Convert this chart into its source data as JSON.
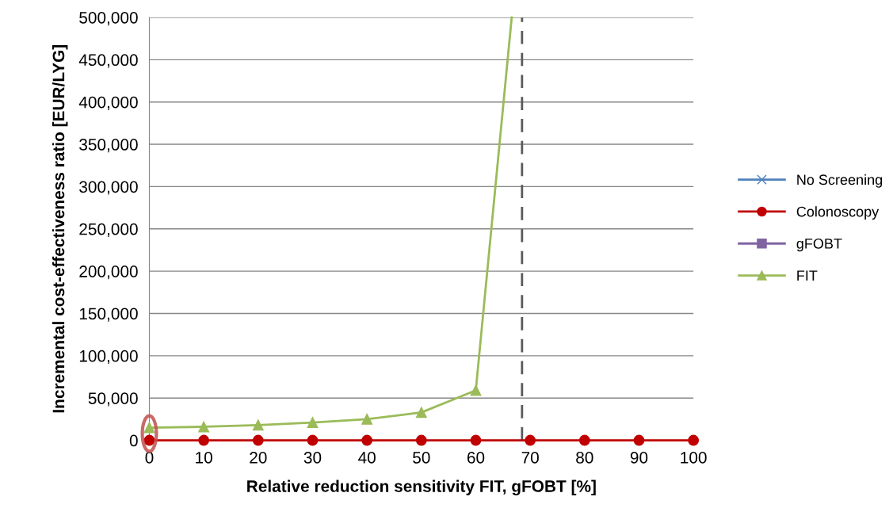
{
  "chart_data": {
    "type": "line",
    "xlabel": "Relative reduction sensitivity FIT, gFOBT [%]",
    "ylabel": "Incremental cost-effectiveness ratio [EUR/LYG]",
    "x": [
      0,
      10,
      20,
      30,
      40,
      50,
      60,
      70,
      80,
      90,
      100
    ],
    "series": [
      {
        "name": "No Screening",
        "color": "#4f81bd",
        "marker": "cross",
        "values": [
          null,
          null,
          null,
          null,
          null,
          null,
          null,
          null,
          null,
          null,
          null
        ]
      },
      {
        "name": "Colonoscopy",
        "color": "#c00000",
        "marker": "circle",
        "values": [
          0,
          0,
          0,
          0,
          0,
          0,
          0,
          0,
          0,
          0,
          0
        ]
      },
      {
        "name": "gFOBT",
        "color": "#8064a2",
        "marker": "square",
        "values": [
          null,
          null,
          null,
          null,
          null,
          null,
          null,
          null,
          null,
          null,
          null
        ]
      },
      {
        "name": "FIT",
        "color": "#9bbb59",
        "marker": "triangle",
        "x": [
          0,
          10,
          20,
          30,
          40,
          50,
          60
        ],
        "values": [
          15000,
          16000,
          18000,
          21000,
          25000,
          33000,
          59000
        ]
      },
      {
        "color": "#9bbb59",
        "marker": "none",
        "x": [
          60,
          66.6
        ],
        "values": [
          59000,
          500000
        ]
      }
    ],
    "xlim": [
      0,
      100
    ],
    "xticks": [
      0,
      10,
      20,
      30,
      40,
      50,
      60,
      70,
      80,
      90,
      100
    ],
    "ylim": [
      0,
      500000
    ],
    "yticks": [
      {
        "value": 0,
        "label": "0"
      },
      {
        "value": 50000,
        "label": "50,000"
      },
      {
        "value": 100000,
        "label": "100,000"
      },
      {
        "value": 150000,
        "label": "150,000"
      },
      {
        "value": 200000,
        "label": "200,000"
      },
      {
        "value": 250000,
        "label": "250,000"
      },
      {
        "value": 300000,
        "label": "300,000"
      },
      {
        "value": 350000,
        "label": "350,000"
      },
      {
        "value": 400000,
        "label": "400,000"
      },
      {
        "value": 450000,
        "label": "450,000"
      },
      {
        "value": 500000,
        "label": "500,000"
      }
    ],
    "ref_lines": [
      {
        "axis": "x",
        "value": 68.5,
        "color": "#595959",
        "line_style": "dashed"
      }
    ],
    "grid": "y",
    "legend": "right",
    "line_style": "solid"
  }
}
